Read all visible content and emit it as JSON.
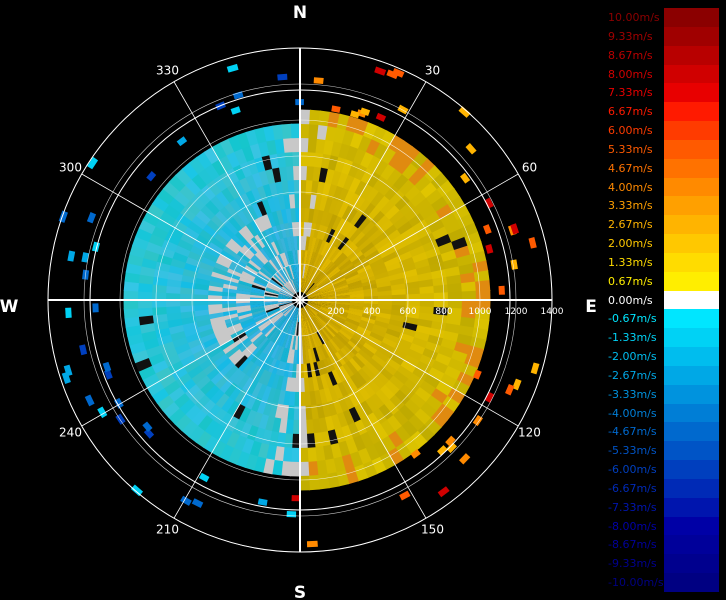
{
  "chart_data": {
    "type": "polar-heatmap",
    "variable": "radial velocity",
    "compass": {
      "north": "N",
      "east": "E",
      "south": "S",
      "west": "W"
    },
    "azimuth_labels": [
      "30",
      "60",
      "120",
      "150",
      "210",
      "240",
      "300",
      "330"
    ],
    "azimuth_values": [
      30,
      60,
      120,
      150,
      210,
      240,
      300,
      330
    ],
    "range_labels": [
      "200",
      "400",
      "600",
      "800",
      "1000",
      "1200",
      "1400"
    ],
    "range_values": [
      200,
      400,
      600,
      800,
      1000,
      1200,
      1400
    ],
    "max_range": 1400,
    "colorbar": {
      "units": "m/s",
      "entries": [
        {
          "label": "10.00m/s",
          "value": 10.0,
          "color": "#8b0000"
        },
        {
          "label": "9.33m/s",
          "value": 9.33,
          "color": "#a00000"
        },
        {
          "label": "8.67m/s",
          "value": 8.67,
          "color": "#b80000"
        },
        {
          "label": "8.00m/s",
          "value": 8.0,
          "color": "#d00000"
        },
        {
          "label": "7.33m/s",
          "value": 7.33,
          "color": "#e80000"
        },
        {
          "label": "6.67m/s",
          "value": 6.67,
          "color": "#ff1a00"
        },
        {
          "label": "6.00m/s",
          "value": 6.0,
          "color": "#ff3b00"
        },
        {
          "label": "5.33m/s",
          "value": 5.33,
          "color": "#ff5a00"
        },
        {
          "label": "4.67m/s",
          "value": 4.67,
          "color": "#ff7200"
        },
        {
          "label": "4.00m/s",
          "value": 4.0,
          "color": "#ff8a00"
        },
        {
          "label": "3.33m/s",
          "value": 3.33,
          "color": "#ffa000"
        },
        {
          "label": "2.67m/s",
          "value": 2.67,
          "color": "#ffb400"
        },
        {
          "label": "2.00m/s",
          "value": 2.0,
          "color": "#ffc800"
        },
        {
          "label": "1.33m/s",
          "value": 1.33,
          "color": "#ffdc00"
        },
        {
          "label": "0.67m/s",
          "value": 0.67,
          "color": "#ffee00"
        },
        {
          "label": "0.00m/s",
          "value": 0.0,
          "color": "#ffffff"
        },
        {
          "label": "-0.67m/s",
          "value": -0.67,
          "color": "#00e6ff"
        },
        {
          "label": "-1.33m/s",
          "value": -1.33,
          "color": "#00d2f5"
        },
        {
          "label": "-2.00m/s",
          "value": -2.0,
          "color": "#00bdee"
        },
        {
          "label": "-2.67m/s",
          "value": -2.67,
          "color": "#00a8e6"
        },
        {
          "label": "-3.33m/s",
          "value": -3.33,
          "color": "#0093de"
        },
        {
          "label": "-4.00m/s",
          "value": -4.0,
          "color": "#007ed6"
        },
        {
          "label": "-4.67m/s",
          "value": -4.67,
          "color": "#0069ce"
        },
        {
          "label": "-5.33m/s",
          "value": -5.33,
          "color": "#0054c6"
        },
        {
          "label": "-6.00m/s",
          "value": -6.0,
          "color": "#003fbe"
        },
        {
          "label": "-6.67m/s",
          "value": -6.67,
          "color": "#002ab6"
        },
        {
          "label": "-7.33m/s",
          "value": -7.33,
          "color": "#0015ae"
        },
        {
          "label": "-8.00m/s",
          "value": -8.0,
          "color": "#0000a6"
        },
        {
          "label": "-8.67m/s",
          "value": -8.67,
          "color": "#00009a"
        },
        {
          "label": "-9.33m/s",
          "value": -9.33,
          "color": "#00008e"
        },
        {
          "label": "-10.00m/s",
          "value": -10.0,
          "color": "#000082"
        }
      ]
    },
    "field": {
      "description_regions": [
        {
          "azimuth_range": [
            0,
            180
          ],
          "range_max": 1000,
          "value": 1.5
        },
        {
          "azimuth_range": [
            180,
            360
          ],
          "range_max": 950,
          "value": -1.8
        }
      ]
    },
    "colors": {
      "background": "#000000",
      "grid": "#ffffff",
      "toward_shade": "#d8b400",
      "away_shade": "#35b8dd",
      "clutter": "#c8c8c8"
    }
  }
}
